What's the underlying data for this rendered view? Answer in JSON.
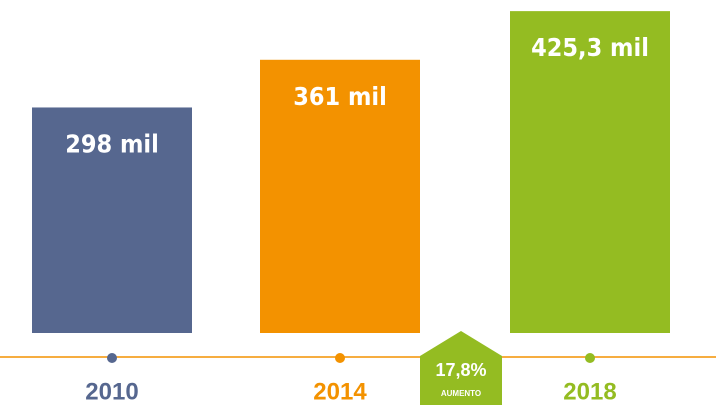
{
  "chart_data": {
    "type": "bar",
    "categories": [
      "2010",
      "2014",
      "2018"
    ],
    "values": [
      298,
      361,
      425.3
    ],
    "value_labels": [
      "298 mil",
      "361 mil",
      "425,3 mil"
    ],
    "colors": [
      "#56678f",
      "#f39200",
      "#94bc22"
    ],
    "ylim": [
      0,
      440
    ],
    "annotation": {
      "text": "17,8%",
      "subtext": "AUMENTO",
      "color": "#94bc22"
    },
    "axis_color": "#f39200"
  }
}
